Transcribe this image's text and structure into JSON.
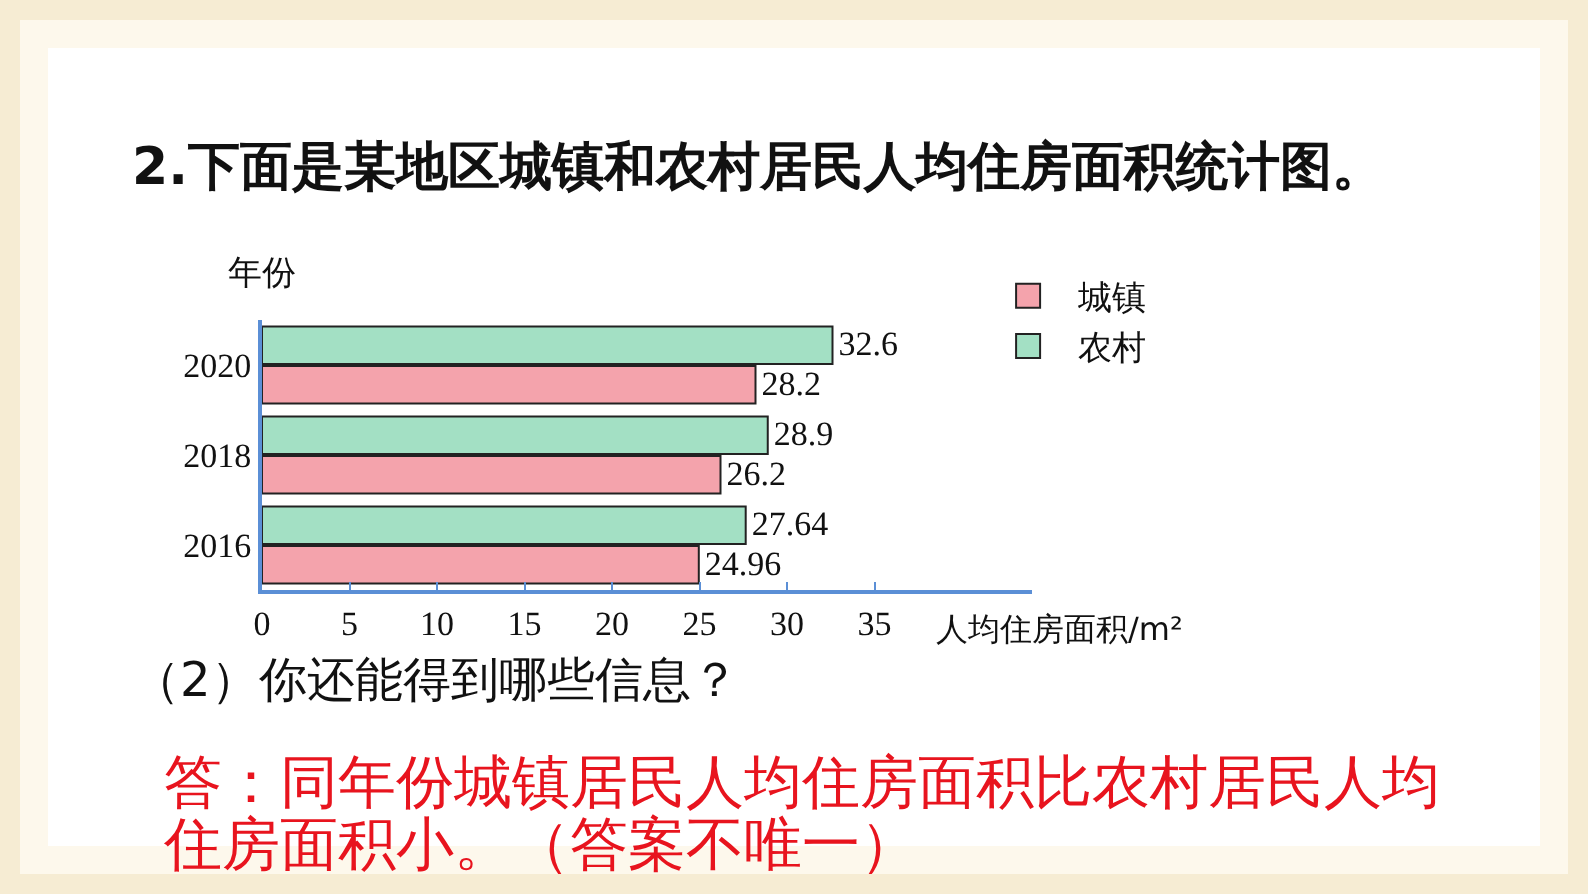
{
  "chart_data": {
    "type": "bar",
    "orientation": "horizontal",
    "title": "2.下面是某地区城镇和农村居民人均住房面积统计图。",
    "ylabel": "年份",
    "xlabel": "人均住房面积/m²",
    "categories": [
      "2020",
      "2018",
      "2016"
    ],
    "series": [
      {
        "name": "城镇",
        "color": "#f4a3ac",
        "values": [
          28.2,
          26.2,
          24.96
        ]
      },
      {
        "name": "农村",
        "color": "#a3e0c4",
        "values": [
          32.6,
          28.9,
          27.64
        ]
      }
    ],
    "xlim": [
      0,
      44
    ],
    "xticks": [
      0,
      5,
      10,
      15,
      20,
      25,
      30,
      35
    ],
    "data_labels": true,
    "legend": "top right",
    "grid": false,
    "annotations": [
      "（2）你还能得到哪些信息？",
      "答：同年份城镇居民人均住房面积比农村居民人均住房面积小。（答案不唯一）"
    ]
  }
}
